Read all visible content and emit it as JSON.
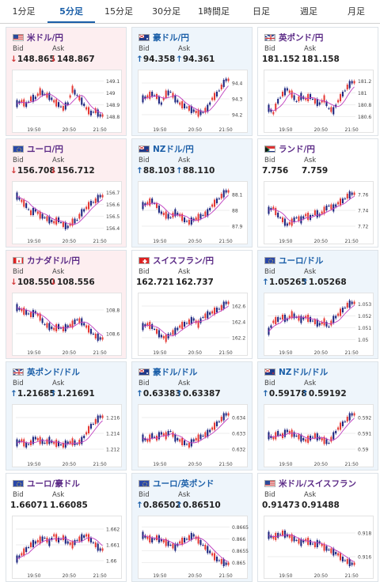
{
  "tabs": [
    {
      "label": "1分足",
      "active": false
    },
    {
      "label": "5分足",
      "active": true
    },
    {
      "label": "15分足",
      "active": false
    },
    {
      "label": "30分足",
      "active": false
    },
    {
      "label": "1時間足",
      "active": false
    },
    {
      "label": "日足",
      "active": false
    },
    {
      "label": "週足",
      "active": false
    },
    {
      "label": "月足",
      "active": false
    }
  ],
  "labels": {
    "bid": "Bid",
    "ask": "Ask"
  },
  "colors": {
    "up": "#1b5fa8",
    "down": "#d23a3a",
    "candle_up": "#e53935",
    "candle_down": "#1a237e",
    "ma": "#c040c0"
  },
  "pairs": [
    {
      "name": "米ドル/円",
      "dir": "down",
      "flag": "us",
      "bid": "148.865",
      "ask": "148.867",
      "arrow": "↓",
      "yticks": [
        "149.1",
        "149",
        "148.9",
        "148.8"
      ],
      "xticks": [
        "19:50",
        "20:50",
        "21:50"
      ],
      "trend": [
        0.6,
        0.55,
        0.62,
        0.5,
        0.48,
        0.35,
        0.4,
        0.45,
        0.55,
        0.62,
        0.7,
        0.6,
        0.3,
        0.42,
        0.55,
        0.7,
        0.8,
        0.75,
        0.85
      ]
    },
    {
      "name": "豪ドル/円",
      "dir": "up",
      "flag": "au",
      "bid": "94.358",
      "ask": "94.361",
      "arrow": "↑",
      "yticks": [
        "94.4",
        "94.3",
        "94.2"
      ],
      "xticks": [
        "19:50",
        "20:50",
        "21:50"
      ],
      "trend": [
        0.5,
        0.45,
        0.4,
        0.45,
        0.6,
        0.4,
        0.35,
        0.5,
        0.6,
        0.65,
        0.7,
        0.75,
        0.8,
        0.78,
        0.7,
        0.5,
        0.4,
        0.25,
        0.1
      ]
    },
    {
      "name": "英ポンド/円",
      "dir": "flat",
      "flag": "uk",
      "bid": "181.152",
      "ask": "181.158",
      "arrow": "",
      "yticks": [
        "181.2",
        "181",
        "180.8",
        "180.6"
      ],
      "xticks": [
        "19:50",
        "20:50",
        "21:50"
      ],
      "trend": [
        0.7,
        0.8,
        0.55,
        0.4,
        0.3,
        0.4,
        0.55,
        0.45,
        0.5,
        0.45,
        0.55,
        0.6,
        0.5,
        0.7,
        0.75,
        0.55,
        0.4,
        0.25,
        0.15
      ]
    },
    {
      "name": "ユーロ/円",
      "dir": "down",
      "flag": "eu",
      "bid": "156.708",
      "ask": "156.712",
      "arrow": "↓",
      "yticks": [
        "156.7",
        "156.6",
        "156.5",
        "156.4"
      ],
      "xticks": [
        "19:50",
        "20:50",
        "21:50"
      ],
      "trend": [
        0.2,
        0.3,
        0.4,
        0.55,
        0.5,
        0.6,
        0.65,
        0.7,
        0.75,
        0.7,
        0.8,
        0.85,
        0.75,
        0.7,
        0.55,
        0.45,
        0.35,
        0.3,
        0.2
      ]
    },
    {
      "name": "NZドル/円",
      "dir": "up",
      "flag": "nz",
      "bid": "88.103",
      "ask": "88.110",
      "arrow": "↑",
      "yticks": [
        "88.1",
        "88",
        "87.9"
      ],
      "xticks": [
        "19:50",
        "20:50",
        "21:50"
      ],
      "trend": [
        0.4,
        0.35,
        0.3,
        0.4,
        0.55,
        0.6,
        0.65,
        0.55,
        0.6,
        0.7,
        0.75,
        0.7,
        0.65,
        0.6,
        0.55,
        0.4,
        0.3,
        0.2,
        0.1
      ]
    },
    {
      "name": "ランド/円",
      "dir": "flat",
      "flag": "za",
      "bid": "7.756",
      "ask": "7.759",
      "arrow": "",
      "yticks": [
        "7.76",
        "7.74",
        "7.72"
      ],
      "xticks": [
        "19:50",
        "20:50",
        "21:50"
      ],
      "trend": [
        0.5,
        0.45,
        0.6,
        0.7,
        0.8,
        0.75,
        0.65,
        0.7,
        0.6,
        0.65,
        0.55,
        0.6,
        0.5,
        0.4,
        0.45,
        0.35,
        0.3,
        0.2,
        0.15
      ]
    },
    {
      "name": "カナダドル/円",
      "dir": "down",
      "flag": "ca",
      "bid": "108.550",
      "ask": "108.556",
      "arrow": "↓",
      "yticks": [
        "108.8",
        "108.6"
      ],
      "xticks": [
        "19:50",
        "20:50",
        "21:50"
      ],
      "trend": [
        0.2,
        0.25,
        0.3,
        0.35,
        0.3,
        0.4,
        0.55,
        0.6,
        0.65,
        0.6,
        0.65,
        0.6,
        0.55,
        0.45,
        0.5,
        0.6,
        0.7,
        0.8,
        0.85
      ]
    },
    {
      "name": "スイスフラン/円",
      "dir": "flat",
      "flag": "ch",
      "bid": "162.721",
      "ask": "162.737",
      "arrow": "",
      "yticks": [
        "162.6",
        "162.4",
        "162.2"
      ],
      "xticks": [
        "19:50",
        "20:50",
        "21:50"
      ],
      "trend": [
        0.6,
        0.55,
        0.6,
        0.7,
        0.8,
        0.85,
        0.75,
        0.7,
        0.6,
        0.55,
        0.5,
        0.45,
        0.55,
        0.4,
        0.35,
        0.3,
        0.25,
        0.2,
        0.1
      ]
    },
    {
      "name": "ユーロ/ドル",
      "dir": "up",
      "flag": "eu",
      "bid": "1.05265",
      "ask": "1.05268",
      "arrow": "↑",
      "yticks": [
        "1.053",
        "1.052",
        "1.051",
        "1.05"
      ],
      "xticks": [
        "19:50",
        "20:50",
        "21:50"
      ],
      "trend": [
        0.7,
        0.5,
        0.45,
        0.4,
        0.45,
        0.35,
        0.4,
        0.45,
        0.4,
        0.45,
        0.5,
        0.55,
        0.5,
        0.6,
        0.45,
        0.35,
        0.25,
        0.15,
        0.1
      ]
    },
    {
      "name": "英ポンド/ドル",
      "dir": "up",
      "flag": "uk",
      "bid": "1.21685",
      "ask": "1.21691",
      "arrow": "↑",
      "yticks": [
        "1.216",
        "1.214",
        "1.212"
      ],
      "xticks": [
        "19:50",
        "20:50",
        "21:50"
      ],
      "trend": [
        0.7,
        0.65,
        0.75,
        0.7,
        0.6,
        0.65,
        0.7,
        0.65,
        0.7,
        0.72,
        0.75,
        0.7,
        0.68,
        0.72,
        0.65,
        0.5,
        0.35,
        0.25,
        0.15
      ]
    },
    {
      "name": "豪ドル/ドル",
      "dir": "up",
      "flag": "au",
      "bid": "0.63383",
      "ask": "0.63387",
      "arrow": "↑",
      "yticks": [
        "0.634",
        "0.633",
        "0.632"
      ],
      "xticks": [
        "19:50",
        "20:50",
        "21:50"
      ],
      "trend": [
        0.6,
        0.65,
        0.55,
        0.6,
        0.5,
        0.55,
        0.45,
        0.6,
        0.65,
        0.7,
        0.75,
        0.65,
        0.6,
        0.55,
        0.5,
        0.4,
        0.3,
        0.2,
        0.1
      ]
    },
    {
      "name": "NZドル/ドル",
      "dir": "up",
      "flag": "nz",
      "bid": "0.59178",
      "ask": "0.59192",
      "arrow": "↑",
      "yticks": [
        "0.592",
        "0.591",
        "0.59"
      ],
      "xticks": [
        "19:50",
        "20:50",
        "21:50"
      ],
      "trend": [
        0.55,
        0.6,
        0.5,
        0.55,
        0.45,
        0.5,
        0.55,
        0.6,
        0.65,
        0.6,
        0.55,
        0.6,
        0.65,
        0.7,
        0.55,
        0.4,
        0.3,
        0.2,
        0.1
      ]
    },
    {
      "name": "ユーロ/豪ドル",
      "dir": "flat",
      "flag": "eu",
      "bid": "1.66071",
      "ask": "1.66085",
      "arrow": "",
      "yticks": [
        "1.662",
        "1.661",
        "1.66"
      ],
      "xticks": [
        "19:50",
        "20:50",
        "21:50"
      ],
      "trend": [
        0.8,
        0.7,
        0.6,
        0.5,
        0.45,
        0.4,
        0.35,
        0.45,
        0.3,
        0.4,
        0.35,
        0.45,
        0.5,
        0.4,
        0.35,
        0.3,
        0.4,
        0.5,
        0.6
      ]
    },
    {
      "name": "ユーロ/英ポンド",
      "dir": "up",
      "flag": "eu",
      "bid": "0.86502",
      "ask": "0.86510",
      "arrow": "↑",
      "yticks": [
        "0.8665",
        "0.866",
        "0.8655",
        "0.865"
      ],
      "xticks": [
        "19:50",
        "20:50",
        "21:50"
      ],
      "trend": [
        0.3,
        0.35,
        0.4,
        0.35,
        0.4,
        0.45,
        0.5,
        0.55,
        0.45,
        0.4,
        0.35,
        0.3,
        0.4,
        0.5,
        0.6,
        0.7,
        0.8,
        0.85,
        0.9
      ]
    },
    {
      "name": "米ドル/スイスフラン",
      "dir": "flat",
      "flag": "us",
      "bid": "0.91473",
      "ask": "0.91488",
      "arrow": "",
      "yticks": [
        "0.918",
        "0.916"
      ],
      "xticks": [
        "19:50",
        "20:50",
        "21:50"
      ],
      "trend": [
        0.3,
        0.35,
        0.3,
        0.25,
        0.3,
        0.35,
        0.4,
        0.45,
        0.4,
        0.45,
        0.5,
        0.45,
        0.55,
        0.6,
        0.65,
        0.7,
        0.8,
        0.85,
        0.9
      ]
    }
  ]
}
